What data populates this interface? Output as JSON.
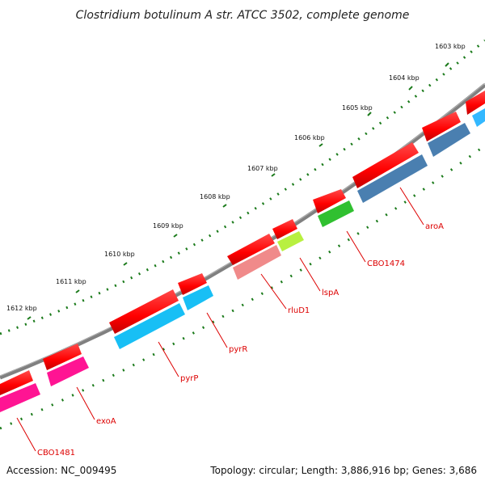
{
  "title": "Clostridium botulinum A str. ATCC 3502, complete genome",
  "footer": {
    "accession": "Accession: NC_009495",
    "summary": "Topology: circular; Length: 3,886,916 bp; Genes: 3,686"
  },
  "kbp_labels": [
    "1603 kbp",
    "1604 kbp",
    "1605 kbp",
    "1606 kbp",
    "1607 kbp",
    "1608 kbp",
    "1609 kbp",
    "1610 kbp",
    "1611 kbp",
    "1612 kbp"
  ],
  "gene_labels": [
    "aroA",
    "CBO1474",
    "lspA",
    "rluD1",
    "pyrR",
    "pyrP",
    "exoA",
    "CBO1481"
  ],
  "colors": {
    "backbone": "#808080",
    "cds": "#ff0000",
    "tick": "#1a7a1a",
    "label": "#dd0000"
  }
}
